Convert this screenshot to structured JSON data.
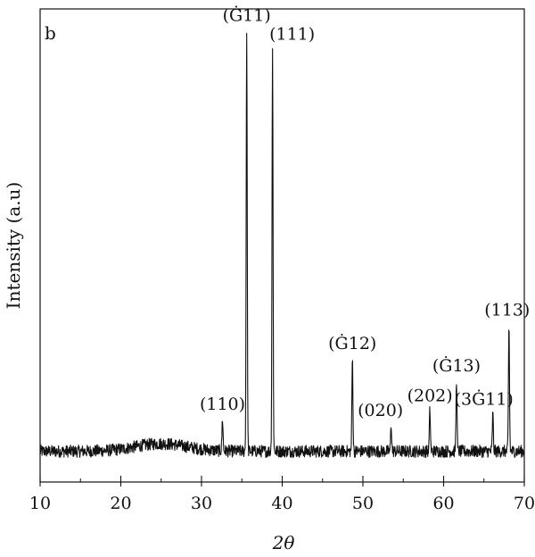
{
  "chart_data": {
    "type": "line",
    "title": "",
    "panel_label": "b",
    "xlabel": "2θ",
    "ylabel": "Intensity (a.u)",
    "xlim": [
      10,
      70
    ],
    "ylim": [
      0,
      100
    ],
    "x_ticks": [
      10,
      20,
      30,
      40,
      50,
      60,
      70
    ],
    "x_tick_labels": [
      "10",
      "20",
      "30",
      "40",
      "50",
      "60",
      "70"
    ],
    "y_ticks_shown": false,
    "grid": false,
    "legend": "none",
    "baseline": 6.5,
    "peaks": [
      {
        "x": 32.6,
        "y": 13.4,
        "label": "(110)"
      },
      {
        "x": 35.6,
        "y": 95.6,
        "label": "(Ġ11)"
      },
      {
        "x": 38.8,
        "y": 91.6,
        "label": "(111)"
      },
      {
        "x": 48.7,
        "y": 26.2,
        "label": "(Ġ12)"
      },
      {
        "x": 53.5,
        "y": 12.1,
        "label": "(020)"
      },
      {
        "x": 58.3,
        "y": 15.2,
        "label": "(202)"
      },
      {
        "x": 61.6,
        "y": 21.5,
        "label": "(Ġ13)"
      },
      {
        "x": 66.1,
        "y": 14.4,
        "label": "(3Ġ11)"
      },
      {
        "x": 68.1,
        "y": 33.3,
        "label": "(113)"
      }
    ],
    "series": [
      {
        "color": "#111111"
      }
    ]
  }
}
